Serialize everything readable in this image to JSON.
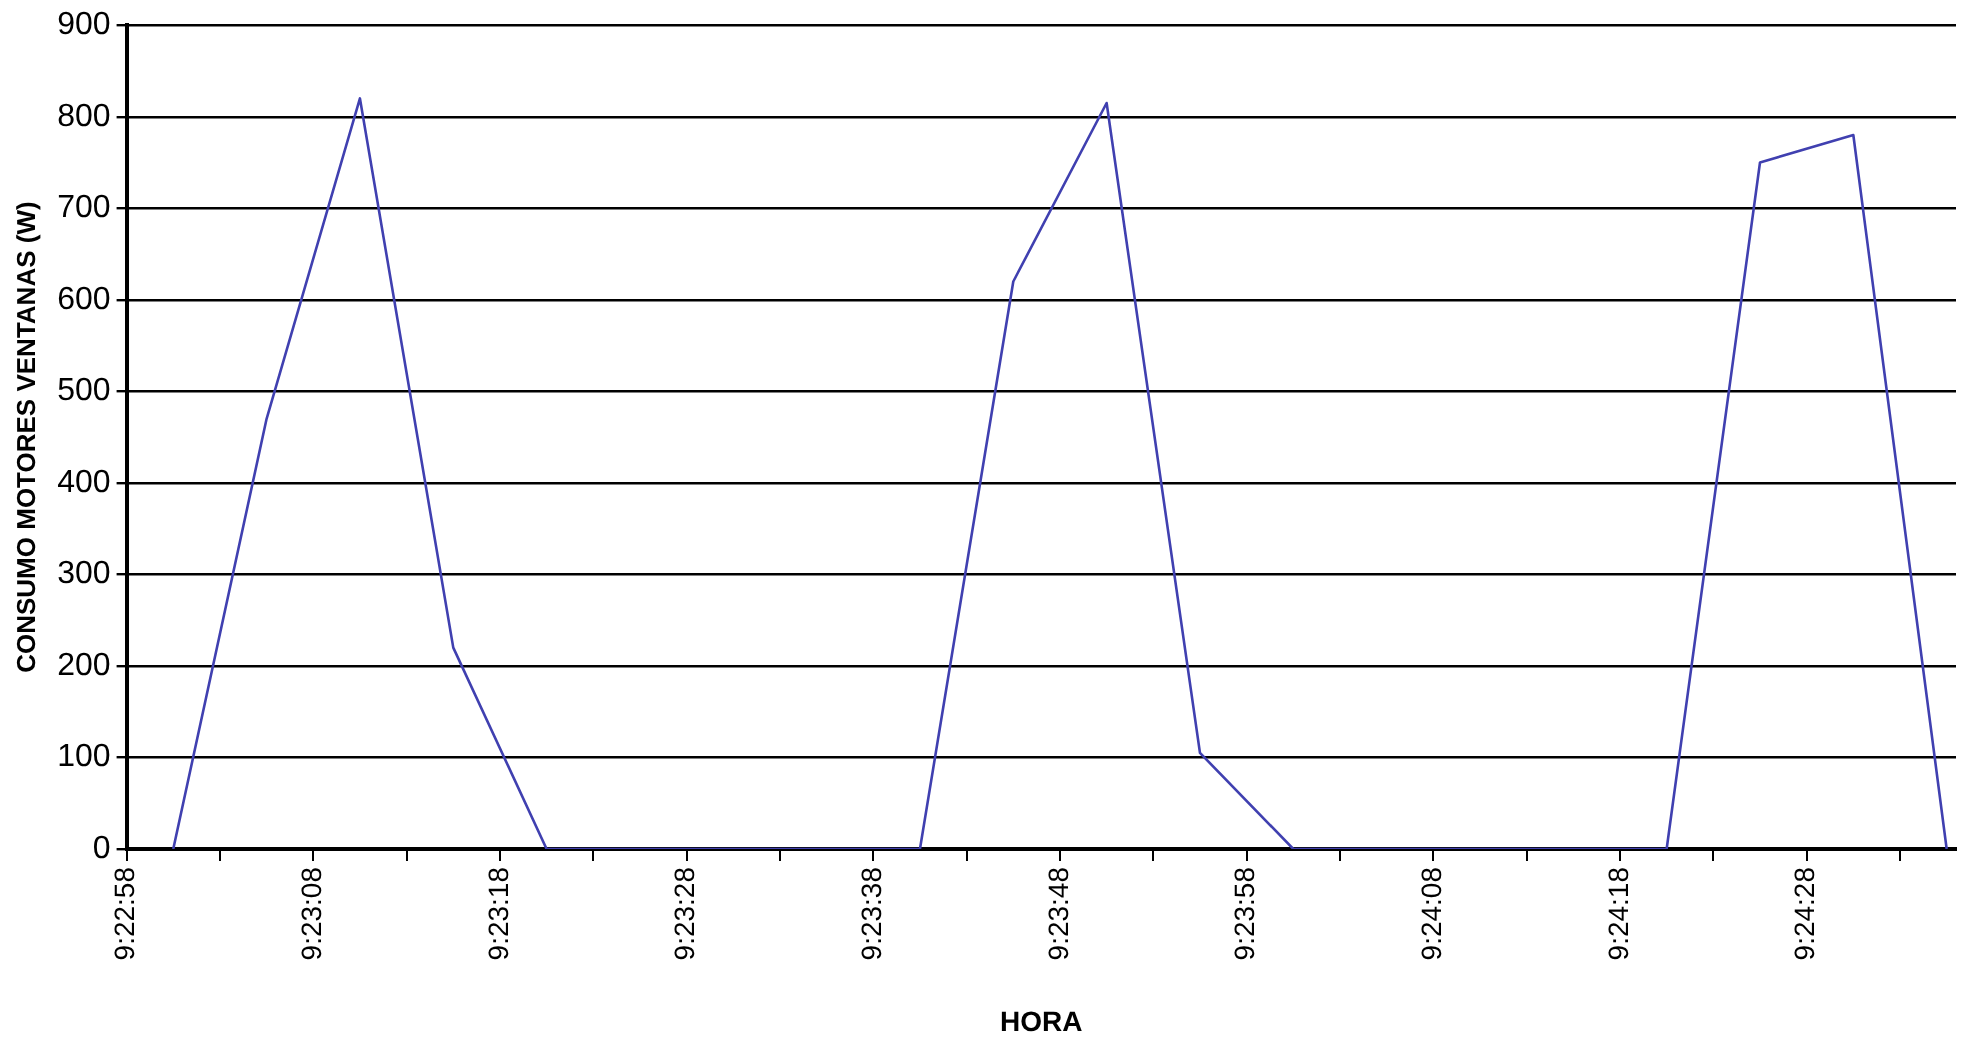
{
  "chart_data": {
    "type": "line",
    "xlabel": "HORA",
    "ylabel": "CONSUMO MOTORES VENTANAS (W)",
    "x": [
      9.38347222,
      9.38486111,
      9.38625,
      9.38763889,
      9.38902778,
      9.39041667,
      9.39180556,
      9.39319444,
      9.39458333,
      9.39597222,
      9.39736111,
      9.39875,
      9.40013889,
      9.40152778,
      9.40291667,
      9.40430556,
      9.40569444,
      9.40708333,
      9.40847222,
      9.40986111
    ],
    "series": [
      {
        "color": "#4040b0",
        "values": [
          0,
          470,
          820,
          220,
          0,
          0,
          0,
          0,
          0,
          620,
          815,
          105,
          0,
          0,
          0,
          0,
          0,
          750,
          780,
          0
        ]
      }
    ],
    "xlim": [
      9.38277778,
      9.41
    ],
    "xticks": [
      {
        "value": 9.38277778,
        "label": "9:22:58"
      },
      {
        "value": 9.38416667,
        "label": null
      },
      {
        "value": 9.38555556,
        "label": "9:23:08"
      },
      {
        "value": 9.38694444,
        "label": null
      },
      {
        "value": 9.38833333,
        "label": "9:23:18"
      },
      {
        "value": 9.38972222,
        "label": null
      },
      {
        "value": 9.39111111,
        "label": "9:23:28"
      },
      {
        "value": 9.3925,
        "label": null
      },
      {
        "value": 9.39388889,
        "label": "9:23:38"
      },
      {
        "value": 9.39527778,
        "label": null
      },
      {
        "value": 9.39666667,
        "label": "9:23:48"
      },
      {
        "value": 9.39805556,
        "label": null
      },
      {
        "value": 9.39944444,
        "label": "9:23:58"
      },
      {
        "value": 9.40083333,
        "label": null
      },
      {
        "value": 9.40222222,
        "label": "9:24:08"
      },
      {
        "value": 9.40361111,
        "label": null
      },
      {
        "value": 9.405,
        "label": "9:24:18"
      },
      {
        "value": 9.40638889,
        "label": null
      },
      {
        "value": 9.40777778,
        "label": "9:24:28"
      },
      {
        "value": 9.40916667,
        "label": null
      }
    ],
    "ylim": [
      0,
      900
    ],
    "yticks": [
      0,
      100,
      200,
      300,
      400,
      500,
      600,
      700,
      800,
      900
    ],
    "grid": "y",
    "legend": false,
    "marker": "none",
    "line_style": "solid"
  }
}
